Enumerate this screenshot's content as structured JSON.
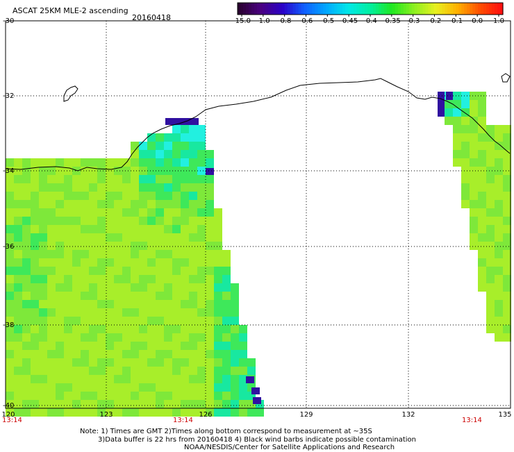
{
  "header": {
    "title": "ASCAT 25KM MLE-2 ascending",
    "date": "20160418"
  },
  "colorbar": {
    "labels": [
      "-15.0",
      "-1.0",
      "-0.8",
      "-0.6",
      "-0.5",
      "-0.45",
      "-0.4",
      "-0.35",
      "-0.3",
      "-0.2",
      "-0.1",
      "0.0",
      "1.0"
    ],
    "colors": [
      "#2a0030",
      "#4a0080",
      "#2a00c8",
      "#1060ff",
      "#00a8ff",
      "#00e8e8",
      "#00f0a0",
      "#20e820",
      "#8cf020",
      "#e8f020",
      "#ffb000",
      "#ff5000",
      "#ff1010"
    ]
  },
  "axes": {
    "lat_labels": [
      "-30",
      "-32",
      "-34",
      "-36",
      "-38",
      "-40"
    ],
    "lon_labels": [
      "120",
      "123",
      "126",
      "129",
      "132",
      "135"
    ]
  },
  "pass_times": [
    "13:14",
    "13:14",
    "13:14"
  ],
  "notes": [
    "Note: 1) Times are GMT 2)Times along bottom correspond to measurement at ~35S",
    "3)Data buffer is 22 hrs from 20160418 4) Black wind barbs indicate possible contamination",
    "NOAA/NESDIS/Center for Satellite Applications and Research"
  ]
}
